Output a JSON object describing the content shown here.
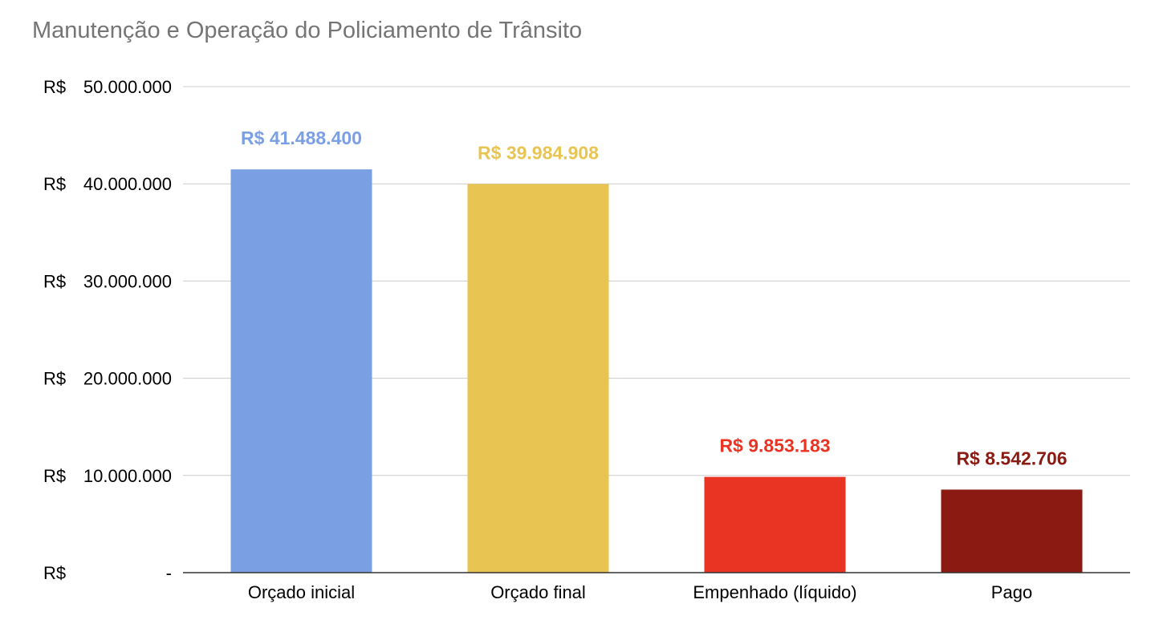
{
  "chart_data": {
    "type": "bar",
    "title": "Manutenção e Operação do Policiamento de Trânsito",
    "categories": [
      "Orçado inicial",
      "Orçado final",
      "Empenhado (líquido)",
      "Pago"
    ],
    "values": [
      41488400,
      39984908,
      9853183,
      8542706
    ],
    "data_labels": [
      "R$  41.488.400",
      "R$  39.984.908",
      "R$  9.853.183",
      "R$  8.542.706"
    ],
    "colors": [
      "#7b9fe3",
      "#e8c553",
      "#e93323",
      "#8b1a12"
    ],
    "label_colors": [
      "#7b9fe3",
      "#e8c553",
      "#e93323",
      "#8b1a12"
    ],
    "ylim": [
      0,
      50000000
    ],
    "yticks": [
      {
        "value": 50000000,
        "prefix": "R$",
        "label": "50.000.000"
      },
      {
        "value": 40000000,
        "prefix": "R$",
        "label": "40.000.000"
      },
      {
        "value": 30000000,
        "prefix": "R$",
        "label": "30.000.000"
      },
      {
        "value": 20000000,
        "prefix": "R$",
        "label": "20.000.000"
      },
      {
        "value": 10000000,
        "prefix": "R$",
        "label": "10.000.000"
      },
      {
        "value": 0,
        "prefix": "R$",
        "label": "-"
      }
    ],
    "grid": true,
    "legend": "none",
    "xlabel": "",
    "ylabel": ""
  }
}
